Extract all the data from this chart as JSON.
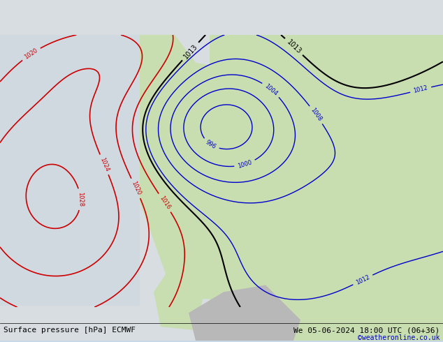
{
  "title_left": "Surface pressure [hPa] ECMWF",
  "title_right": "We 05-06-2024 18:00 UTC (06+36)",
  "credit": "©weatheronline.co.uk",
  "bg_ocean": "#d8e8f0",
  "bg_land_west": "#e8e8e8",
  "bg_land_east": "#d0e8c0",
  "isobar_red_color": "#cc0000",
  "isobar_blue_color": "#0000cc",
  "isobar_black_color": "#000000",
  "font_size_labels": 7,
  "font_size_bottom": 8,
  "font_size_credit": 7,
  "figsize": [
    6.34,
    4.9
  ],
  "dpi": 100
}
